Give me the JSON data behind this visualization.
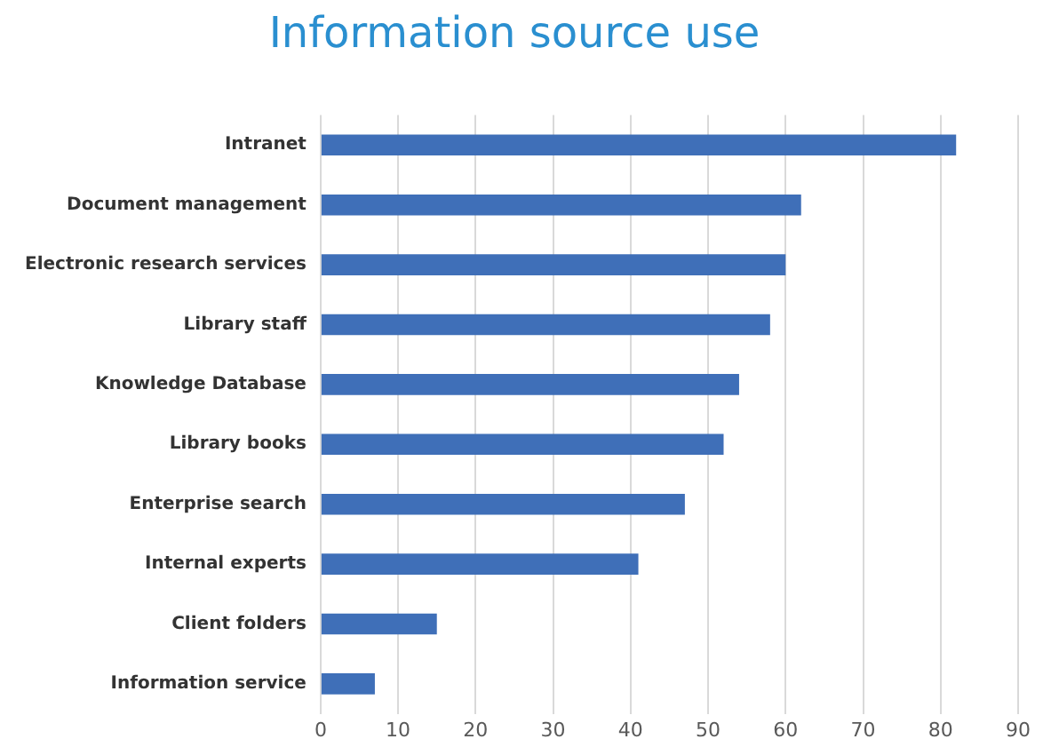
{
  "chart_data": {
    "type": "bar",
    "orientation": "horizontal",
    "title": "Information source use",
    "categories": [
      "Intranet",
      "Document management",
      "Electronic research services",
      "Library staff",
      "Knowledge Database",
      "Library books",
      "Enterprise search",
      "Internal experts",
      "Client folders",
      "Information service"
    ],
    "values": [
      82,
      62,
      60,
      58,
      54,
      52,
      47,
      41,
      15,
      7
    ],
    "color": "#3f6fb8",
    "xlim": [
      0,
      90
    ],
    "xticks": [
      0,
      10,
      20,
      30,
      40,
      50,
      60,
      70,
      80,
      90
    ],
    "grid": "x"
  }
}
